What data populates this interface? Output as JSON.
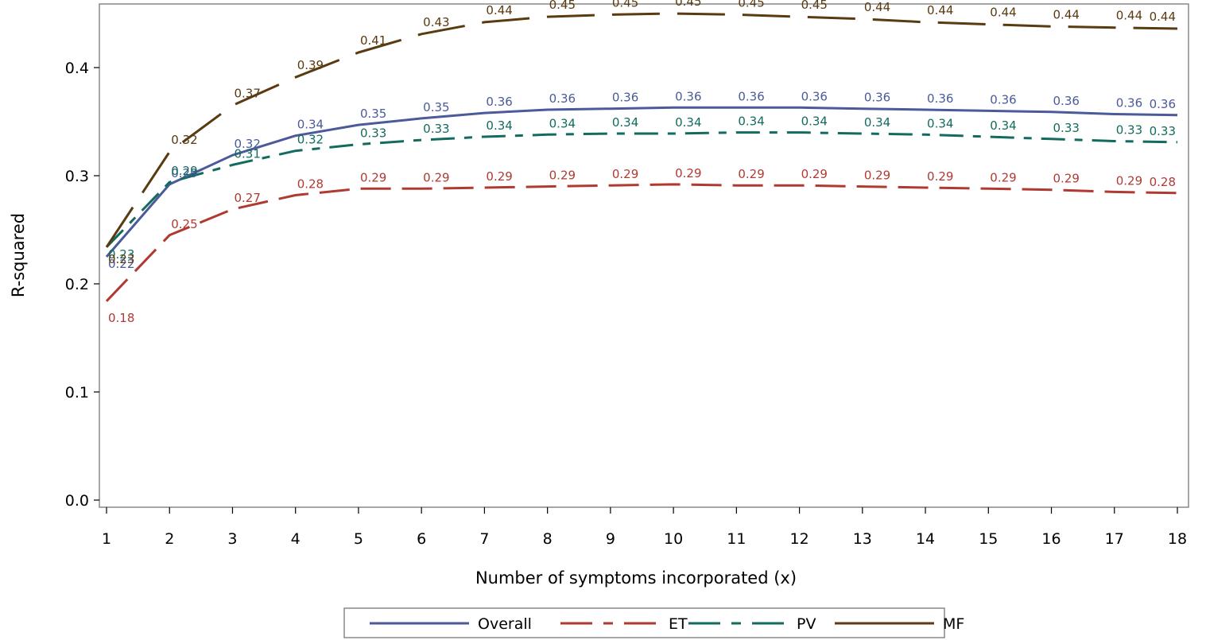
{
  "chart_data": {
    "type": "line",
    "xlabel": "Number of symptoms incorporated (x)",
    "ylabel": "R-squared",
    "xlim": [
      1,
      18
    ],
    "ylim": [
      0.0,
      0.45
    ],
    "x": [
      1,
      2,
      3,
      4,
      5,
      6,
      7,
      8,
      9,
      10,
      11,
      12,
      13,
      14,
      15,
      16,
      17,
      18
    ],
    "x_ticks": [
      "1",
      "2",
      "3",
      "4",
      "5",
      "6",
      "7",
      "8",
      "9",
      "10",
      "11",
      "12",
      "13",
      "14",
      "15",
      "16",
      "17",
      "18"
    ],
    "y_ticks": [
      "0.0",
      "0.1",
      "0.2",
      "0.3",
      "0.4"
    ],
    "y_tick_values": [
      0.0,
      0.1,
      0.2,
      0.3,
      0.4
    ],
    "grid": false,
    "legend_position": "bottom-center",
    "series": [
      {
        "name": "Overall",
        "color": "#4a5a9a",
        "dash": "solid",
        "values": [
          0.225,
          0.292,
          0.319,
          0.337,
          0.347,
          0.353,
          0.358,
          0.361,
          0.362,
          0.363,
          0.363,
          0.363,
          0.362,
          0.361,
          0.36,
          0.359,
          0.357,
          0.356
        ],
        "labels": [
          "0.22",
          "0.29",
          "0.32",
          "0.34",
          "0.35",
          "0.35",
          "0.36",
          "0.36",
          "0.36",
          "0.36",
          "0.36",
          "0.36",
          "0.36",
          "0.36",
          "0.36",
          "0.36",
          "0.36",
          "0.36"
        ]
      },
      {
        "name": "ET",
        "color": "#b03a32",
        "dash": "long-dash",
        "values": [
          0.184,
          0.245,
          0.269,
          0.282,
          0.288,
          0.288,
          0.289,
          0.29,
          0.291,
          0.292,
          0.291,
          0.291,
          0.29,
          0.289,
          0.288,
          0.287,
          0.285,
          0.284
        ],
        "labels": [
          "0.18",
          "0.25",
          "0.27",
          "0.28",
          "0.29",
          "0.29",
          "0.29",
          "0.29",
          "0.29",
          "0.29",
          "0.29",
          "0.29",
          "0.29",
          "0.29",
          "0.29",
          "0.29",
          "0.29",
          "0.28"
        ]
      },
      {
        "name": "PV",
        "color": "#126b5e",
        "dash": "long-short",
        "values": [
          0.234,
          0.294,
          0.31,
          0.323,
          0.329,
          0.333,
          0.336,
          0.338,
          0.339,
          0.339,
          0.34,
          0.34,
          0.339,
          0.338,
          0.336,
          0.334,
          0.332,
          0.331
        ],
        "labels": [
          "0.23",
          "0.29",
          "0.31",
          "0.32",
          "0.33",
          "0.33",
          "0.34",
          "0.34",
          "0.34",
          "0.34",
          "0.34",
          "0.34",
          "0.34",
          "0.34",
          "0.34",
          "0.33",
          "0.33",
          "0.33"
        ]
      },
      {
        "name": "MF",
        "color": "#5a3a10",
        "dash": "medium-dash",
        "values": [
          0.234,
          0.322,
          0.365,
          0.391,
          0.414,
          0.431,
          0.442,
          0.447,
          0.449,
          0.45,
          0.449,
          0.447,
          0.445,
          0.442,
          0.44,
          0.438,
          0.437,
          0.436
        ],
        "labels": [
          "0.23",
          "0.32",
          "0.37",
          "0.39",
          "0.41",
          "0.43",
          "0.44",
          "0.45",
          "0.45",
          "0.45",
          "0.45",
          "0.45",
          "0.44",
          "0.44",
          "0.44",
          "0.44",
          "0.44",
          "0.44"
        ]
      }
    ]
  }
}
